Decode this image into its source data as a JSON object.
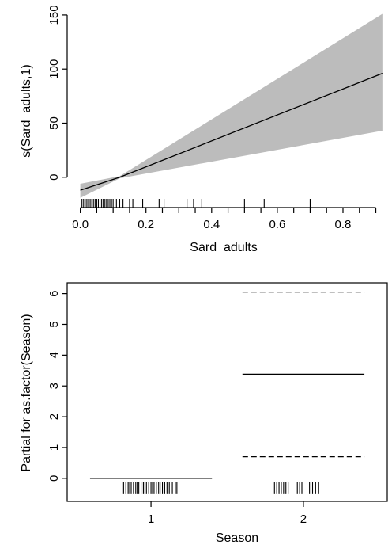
{
  "chart_data": [
    {
      "type": "line",
      "xlabel": "Sard_adults",
      "ylabel": "s(Sard_adults,1)",
      "xlim": [
        -0.04,
        0.93
      ],
      "ylim": [
        -28,
        158
      ],
      "x_ticks": [
        0.0,
        0.2,
        0.4,
        0.6,
        0.8
      ],
      "x_tick_labels": [
        "0.0",
        "0.2",
        "0.4",
        "0.6",
        "0.8"
      ],
      "y_ticks": [
        0,
        50,
        100,
        150
      ],
      "y_tick_labels": [
        "0",
        "50",
        "100",
        "150"
      ],
      "series": [
        {
          "x": [
            0.0,
            0.12,
            0.92
          ],
          "y": [
            -12,
            0,
            96
          ]
        }
      ],
      "confidence_band": {
        "x": [
          0.0,
          0.12,
          0.92
        ],
        "upper": [
          -6,
          1,
          151
        ],
        "lower": [
          -19,
          -1,
          43
        ]
      },
      "rug": [
        0.005,
        0.01,
        0.015,
        0.02,
        0.025,
        0.03,
        0.035,
        0.04,
        0.045,
        0.05,
        0.055,
        0.06,
        0.065,
        0.07,
        0.075,
        0.08,
        0.085,
        0.09,
        0.095,
        0.1,
        0.11,
        0.12,
        0.13,
        0.15,
        0.16,
        0.19,
        0.24,
        0.255,
        0.325,
        0.345,
        0.37,
        0.5,
        0.56,
        0.7
      ]
    },
    {
      "type": "line",
      "xlabel": "Season",
      "ylabel": "Partial for as.factor(Season)",
      "xlim": [
        0.45,
        2.55
      ],
      "ylim": [
        -0.75,
        6.35
      ],
      "x_ticks": [
        1,
        2
      ],
      "x_tick_labels": [
        "1",
        "2"
      ],
      "y_ticks": [
        0,
        1,
        2,
        3,
        4,
        5,
        6
      ],
      "y_tick_labels": [
        "0",
        "1",
        "2",
        "3",
        "4",
        "5",
        "6"
      ],
      "levels": [
        {
          "name": "1",
          "x_range": [
            0.6,
            1.4
          ],
          "effect": 0,
          "upper": 0,
          "lower": 0
        },
        {
          "name": "2",
          "x_range": [
            1.6,
            2.4
          ],
          "effect": 3.38,
          "upper": 6.05,
          "lower": 0.7
        }
      ],
      "rug": [
        0.82,
        0.835,
        0.85,
        0.86,
        0.87,
        0.885,
        0.9,
        0.91,
        0.92,
        0.935,
        0.95,
        0.96,
        0.97,
        0.985,
        1.0,
        1.01,
        1.02,
        1.035,
        1.05,
        1.06,
        1.075,
        1.09,
        1.105,
        1.12,
        1.14,
        1.16,
        1.17,
        1.81,
        1.825,
        1.84,
        1.855,
        1.87,
        1.885,
        1.9,
        1.96,
        1.975,
        1.99,
        2.04,
        2.06,
        2.08,
        2.1
      ]
    }
  ]
}
